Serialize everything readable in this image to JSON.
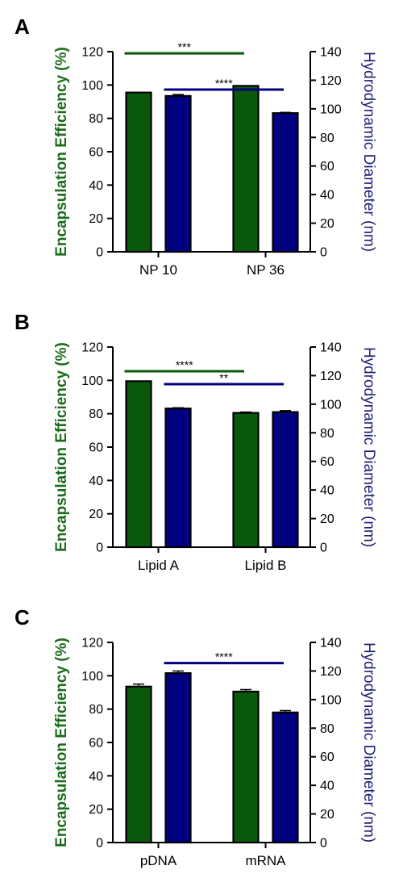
{
  "colors": {
    "left_series": "#0b5a0b",
    "right_series": "#000080",
    "left_label": "#1a6b1a",
    "right_label": "#1f1f7a",
    "axis": "#000000"
  },
  "chart_data": [
    {
      "panel": "A",
      "type": "bar",
      "categories": [
        "NP 10",
        "NP 36"
      ],
      "left_axis": {
        "label": "Encapsulation Efficiency  (%)",
        "ylim": [
          0,
          120
        ],
        "ticks": [
          0,
          20,
          40,
          60,
          80,
          100,
          120
        ]
      },
      "right_axis": {
        "label": "Hydrodynamic  Diameter (nm)",
        "ylim": [
          0,
          140
        ],
        "ticks": [
          0,
          20,
          40,
          60,
          80,
          100,
          120,
          140
        ]
      },
      "series": [
        {
          "axis": "left",
          "values": [
            95.5,
            99.5
          ],
          "errors": [
            0,
            0
          ]
        },
        {
          "axis": "right",
          "values": [
            109,
            97
          ],
          "errors": [
            1,
            0.5
          ]
        }
      ],
      "annotations": [
        {
          "series": "left",
          "label": "***",
          "from": 0,
          "to": 1,
          "level": 119
        },
        {
          "series": "right",
          "label": "****",
          "from": 0,
          "to": 1,
          "level": 113.5
        }
      ]
    },
    {
      "panel": "B",
      "type": "bar",
      "categories": [
        "Lipid A",
        "Lipid B"
      ],
      "left_axis": {
        "label": "Encapsulation Efficiency  (%)",
        "ylim": [
          0,
          120
        ],
        "ticks": [
          0,
          20,
          40,
          60,
          80,
          100,
          120
        ]
      },
      "right_axis": {
        "label": "Hydrodynamic  Diameter (nm)",
        "ylim": [
          0,
          140
        ],
        "ticks": [
          0,
          20,
          40,
          60,
          80,
          100,
          120,
          140
        ]
      },
      "series": [
        {
          "axis": "left",
          "values": [
            99.5,
            80.5
          ],
          "errors": [
            0,
            0.5
          ]
        },
        {
          "axis": "right",
          "values": [
            97,
            94.5
          ],
          "errors": [
            0.5,
            1
          ]
        }
      ],
      "annotations": [
        {
          "series": "left",
          "label": "****",
          "from": 0,
          "to": 1,
          "level": 105.5
        },
        {
          "series": "right",
          "label": "**",
          "from": 0,
          "to": 1,
          "level": 114
        }
      ]
    },
    {
      "panel": "C",
      "type": "bar",
      "categories": [
        "pDNA",
        "mRNA"
      ],
      "left_axis": {
        "label": "Encapsulation Efficiency  (%)",
        "ylim": [
          0,
          120
        ],
        "ticks": [
          0,
          20,
          40,
          60,
          80,
          100,
          120
        ]
      },
      "right_axis": {
        "label": "Hydrodynamic  Diameter (nm)",
        "ylim": [
          0,
          140
        ],
        "ticks": [
          0,
          20,
          40,
          60,
          80,
          100,
          120,
          140
        ]
      },
      "series": [
        {
          "axis": "left",
          "values": [
            93.5,
            90.5
          ],
          "errors": [
            1.5,
            1.2
          ]
        },
        {
          "axis": "right",
          "values": [
            118.5,
            91
          ],
          "errors": [
            1.5,
            1.3
          ]
        }
      ],
      "annotations": [
        {
          "series": "right",
          "label": "****",
          "from": 0,
          "to": 1,
          "level": 125.5
        }
      ]
    }
  ]
}
